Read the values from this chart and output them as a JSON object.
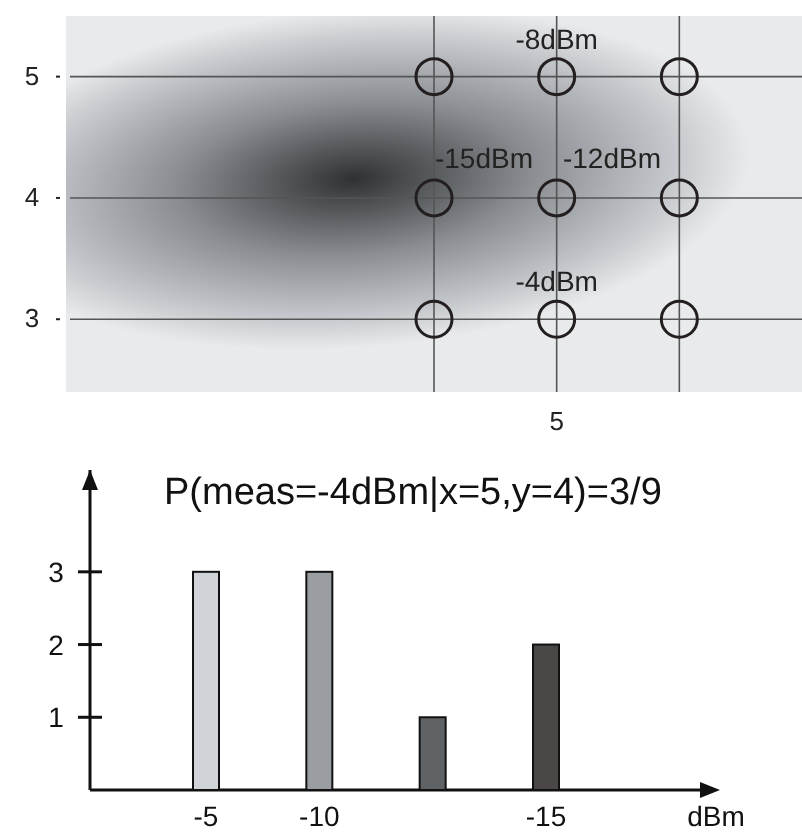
{
  "chart_data": [
    {
      "type": "scatter",
      "categories": [
        null,
        null,
        null,
        null,
        "5",
        null,
        null
      ],
      "ylim": [
        2.4,
        5.5
      ],
      "yticks": [
        3,
        4,
        5
      ],
      "grid": true,
      "marker": "circle",
      "series": [
        {
          "color": "#231f20",
          "values": [
            null,
            null,
            null,
            5,
            5,
            5,
            null
          ]
        },
        {
          "color": "#231f20",
          "values": [
            null,
            null,
            null,
            4,
            4,
            4,
            null
          ]
        },
        {
          "color": "#231f20",
          "values": [
            null,
            null,
            null,
            3,
            3,
            3,
            null
          ]
        }
      ],
      "annotations": [
        {
          "text": "-8dBm",
          "x": "5",
          "y": 5
        },
        "-15dBm",
        "-12dBm",
        {
          "text": "-4dBm",
          "x": "5",
          "y": 3
        }
      ]
    },
    {
      "type": "bar",
      "title": "P(meas=-4dBm|x=5,y=4)=3/9",
      "xlabel": "dBm",
      "categories": [
        "-5",
        "-10",
        null,
        "-15"
      ],
      "values": [
        3,
        3,
        1,
        2
      ],
      "colors": [
        "#d0d3d8",
        "#9a9ea3",
        "#5f6366",
        "#4a4746"
      ],
      "ylim": [
        0,
        4.4
      ],
      "yticks": [
        1,
        2,
        3
      ]
    }
  ]
}
